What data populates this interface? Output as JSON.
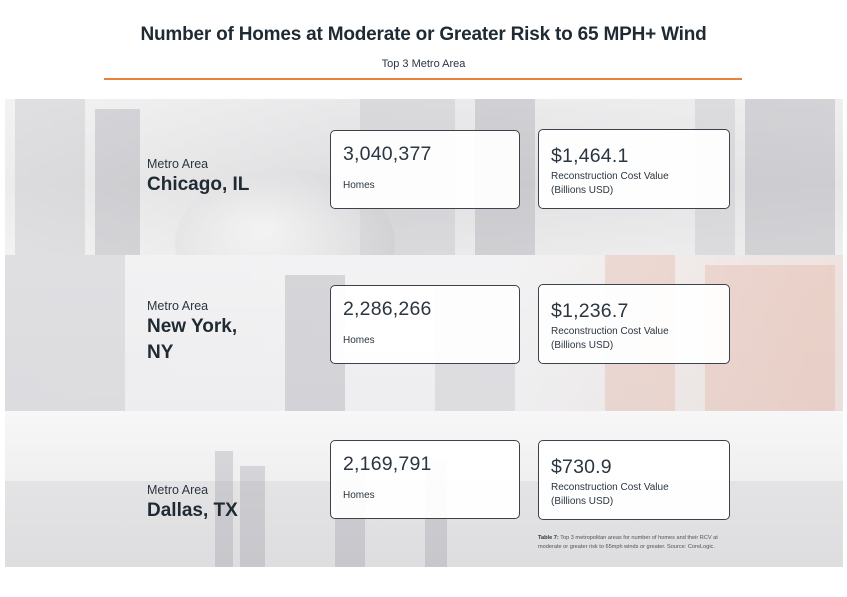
{
  "header": {
    "title": "Number of Homes at Moderate or Greater Risk to 65 MPH+ Wind",
    "subtitle": "Top 3 Metro Area"
  },
  "colors": {
    "accent_rule": "#e8813a",
    "text_dark": "#1f2a33",
    "card_border": "#3a434c"
  },
  "metros": [
    {
      "label": "Metro Area",
      "name_line1": "Chicago, IL",
      "name_line2": "",
      "homes_value": "3,040,377",
      "homes_label": "Homes",
      "rcv_value": "$1,464.1",
      "rcv_label_line1": "Reconstruction Cost Value",
      "rcv_label_line2": "(Billions USD)"
    },
    {
      "label": "Metro Area",
      "name_line1": "New York,",
      "name_line2": "NY",
      "homes_value": "2,286,266",
      "homes_label": "Homes",
      "rcv_value": "$1,236.7",
      "rcv_label_line1": "Reconstruction Cost Value",
      "rcv_label_line2": "(Billions USD)"
    },
    {
      "label": "Metro Area",
      "name_line1": "Dallas, TX",
      "name_line2": "",
      "homes_value": "2,169,791",
      "homes_label": "Homes",
      "rcv_value": "$730.9",
      "rcv_label_line1": "Reconstruction Cost Value",
      "rcv_label_line2": "(Billions USD)"
    }
  ],
  "caption": {
    "lead": "Table 7:",
    "text": "Top 3 metropolitan areas for number of homes and their RCV at moderate or greater risk to 65mph winds or greater. Source: CoreLogic."
  }
}
